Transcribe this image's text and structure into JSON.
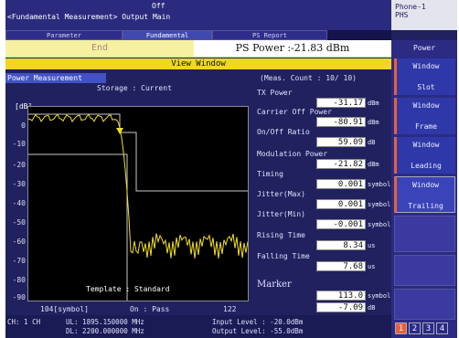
{
  "header": {
    "breadcrumb": "<Fundamental Measurement> Output Main",
    "state": "Off",
    "phone_line1": "Phone-1",
    "phone_line2": "PHS"
  },
  "tabs": [
    {
      "label": "Parameter"
    },
    {
      "label": "Fundamental"
    },
    {
      "label": "PS Report"
    }
  ],
  "status": {
    "end_label": "End",
    "ps_power": "PS Power :-21.83 dBm"
  },
  "view_window": "View Window",
  "panel": {
    "title": "Power Measurement",
    "storage": "Storage : Current",
    "meas_count": "(Meas. Count :   10/   10)"
  },
  "plot": {
    "yunit": "[dB]",
    "yticks": [
      "0",
      "-10",
      "-20",
      "-30",
      "-40",
      "-50",
      "-60",
      "-70",
      "-80",
      "-90"
    ],
    "template": "Template : Standard",
    "x_left": "104[symbol]",
    "on_pass": "On : Pass",
    "x_right": "122"
  },
  "measurements": [
    {
      "label": "TX Power",
      "value": "-31.17",
      "unit": "dBm"
    },
    {
      "label": "Carrier Off Power",
      "value": "-80.91",
      "unit": "dBm"
    },
    {
      "label": "On/Off Ratio",
      "value": "59.09",
      "unit": "dB"
    },
    {
      "label": "Modulation Power",
      "value": "-21.82",
      "unit": "dBm"
    },
    {
      "label": "Timing",
      "value": "0.001",
      "unit": "symbol"
    },
    {
      "label": "Jitter(Max)",
      "value": "0.001",
      "unit": "symbol"
    },
    {
      "label": "Jitter(Min)",
      "value": "-0.001",
      "unit": "symbol"
    },
    {
      "label": "Rising Time",
      "value": "8.34",
      "unit": "us"
    },
    {
      "label": "Falling Time",
      "value": "7.68",
      "unit": "us"
    }
  ],
  "marker": {
    "label": "Marker",
    "value1": "113.0",
    "unit1": "symbol",
    "value2": "-7.09",
    "unit2": "dB"
  },
  "footer": {
    "ch": "CH:    1 CH",
    "ul": "UL: 1895.150000 MHz",
    "dl": "DL: 2200.000000 MHz",
    "input_level": "Input Level :   -20.0dBm",
    "output_level": "Output Level:   -55.0dBm"
  },
  "sidebar": {
    "title": "Power",
    "buttons": [
      {
        "line1": "Window",
        "line2": "Slot"
      },
      {
        "line1": "Window",
        "line2": "Frame"
      },
      {
        "line1": "Window",
        "line2": "Leading"
      },
      {
        "line1": "Window",
        "line2": "Trailing"
      }
    ],
    "pages": [
      "1",
      "2",
      "3",
      "4"
    ]
  },
  "colors": {
    "background": "#21215f",
    "trace": "#f2e020",
    "template": "#c8c8c8",
    "view_window_bar": "#f3d522",
    "button_accent": "#e8603a"
  }
}
